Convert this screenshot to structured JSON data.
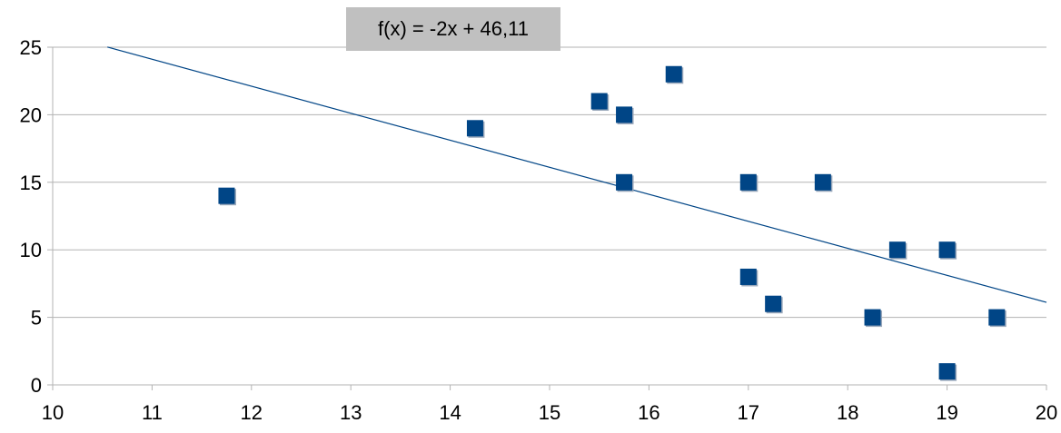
{
  "chart_data": {
    "type": "scatter",
    "title": "",
    "xlabel": "",
    "ylabel": "",
    "xlim": [
      10,
      20
    ],
    "ylim": [
      0,
      25
    ],
    "x_ticks": [
      "10",
      "11",
      "12",
      "13",
      "14",
      "15",
      "16",
      "17",
      "18",
      "19",
      "20"
    ],
    "y_ticks": [
      "0",
      "5",
      "10",
      "15",
      "20",
      "25"
    ],
    "grid": "horizontal",
    "series": [
      {
        "color": "#004586",
        "marker": "square",
        "points": [
          {
            "x": 11.75,
            "y": 14
          },
          {
            "x": 14.25,
            "y": 19
          },
          {
            "x": 15.5,
            "y": 21
          },
          {
            "x": 15.75,
            "y": 20
          },
          {
            "x": 15.75,
            "y": 15
          },
          {
            "x": 16.25,
            "y": 23
          },
          {
            "x": 17.0,
            "y": 15
          },
          {
            "x": 17.0,
            "y": 8
          },
          {
            "x": 17.25,
            "y": 6
          },
          {
            "x": 17.75,
            "y": 15
          },
          {
            "x": 18.25,
            "y": 5
          },
          {
            "x": 18.5,
            "y": 10
          },
          {
            "x": 19.0,
            "y": 10
          },
          {
            "x": 19.0,
            "y": 1
          },
          {
            "x": 19.5,
            "y": 5
          }
        ]
      }
    ],
    "trendline": {
      "equation": "f(x) = -2x + 46,11",
      "slope": -2,
      "intercept": 46.11,
      "color": "#004586",
      "x_range": [
        10.55,
        20
      ]
    }
  }
}
